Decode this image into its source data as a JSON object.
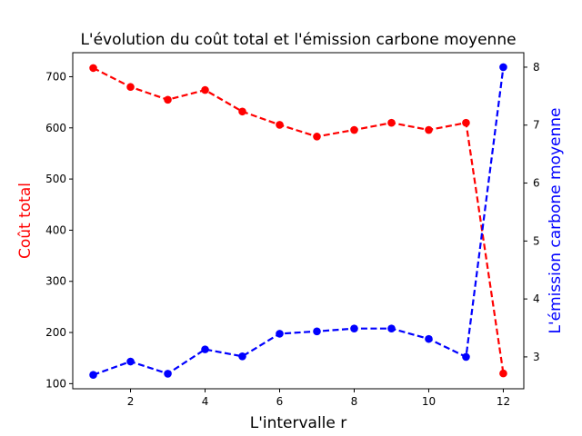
{
  "chart_data": {
    "type": "line",
    "title": "L'évolution du coût total et l'émission carbone moyenne",
    "xlabel": "L'intervalle r",
    "ylabel_left": "Coût total",
    "ylabel_right": "L'émission carbone moyenne",
    "left_color": "#ff0000",
    "right_color": "#0000ff",
    "xlim": [
      0.45,
      12.55
    ],
    "ylim_left": [
      90,
      747
    ],
    "ylim_right": [
      2.45,
      8.25
    ],
    "x_ticks": [
      2,
      4,
      6,
      8,
      10,
      12
    ],
    "y_ticks_left": [
      100,
      200,
      300,
      400,
      500,
      600,
      700
    ],
    "y_ticks_right": [
      3,
      4,
      5,
      6,
      7,
      8
    ],
    "grid": false,
    "series": [
      {
        "axis": "left",
        "color": "#ff0000",
        "x": [
          1,
          2,
          3,
          4,
          5,
          6,
          7,
          8,
          9,
          10,
          11,
          12
        ],
        "values": [
          717,
          680,
          655,
          674,
          632,
          606,
          583,
          596,
          610,
          596,
          610,
          120
        ]
      },
      {
        "axis": "right",
        "color": "#0000ff",
        "x": [
          1,
          2,
          3,
          4,
          5,
          6,
          7,
          8,
          9,
          10,
          11,
          12
        ],
        "values": [
          2.69,
          2.92,
          2.71,
          3.13,
          3.01,
          3.4,
          3.44,
          3.49,
          3.49,
          3.31,
          3.0,
          8.0
        ]
      }
    ]
  }
}
